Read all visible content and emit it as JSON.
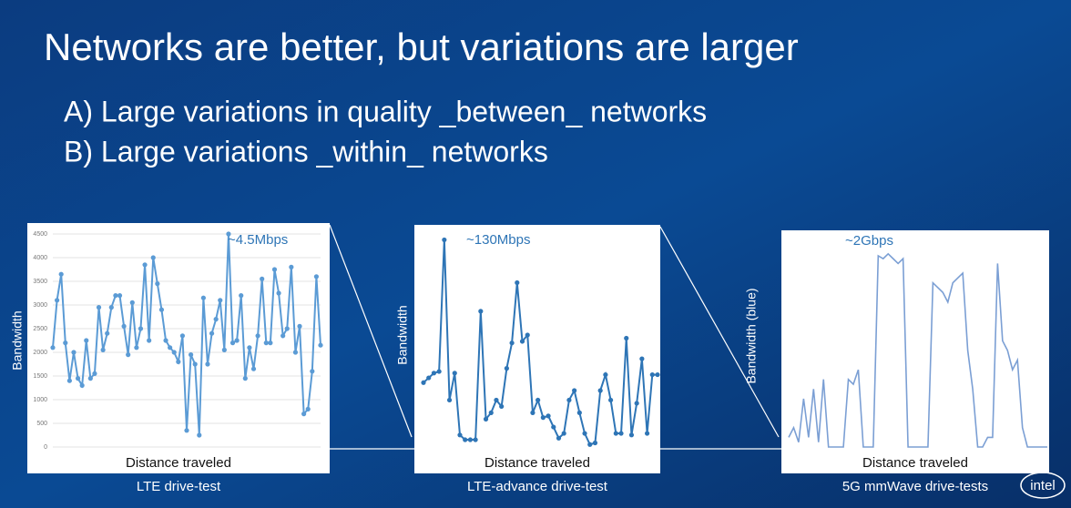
{
  "title": "Networks are better, but variations are larger",
  "points": [
    "A) Large variations in quality _between_ networks",
    "B) Large variations _within_ networks"
  ],
  "logo": "intel",
  "chart_data": [
    {
      "type": "line",
      "ylabel": "Bandwidth",
      "xlabel": "Distance traveled",
      "caption": "LTE drive-test",
      "annotation": "~4.5Mbps",
      "color": "#5b9bd5",
      "markers": true,
      "grid": true,
      "ylim": [
        0,
        4500
      ],
      "yticks": [
        0,
        500,
        1000,
        1500,
        2000,
        2500,
        3000,
        3500,
        4000,
        4500
      ],
      "values": [
        2100,
        3100,
        3650,
        2200,
        1400,
        2000,
        1450,
        1300,
        2250,
        1450,
        1550,
        2950,
        2050,
        2400,
        2950,
        3200,
        3200,
        2550,
        1950,
        3050,
        2100,
        2500,
        3850,
        2250,
        4000,
        3450,
        2900,
        2250,
        2100,
        2000,
        1800,
        2350,
        350,
        1950,
        1750,
        250,
        3150,
        1750,
        2400,
        2700,
        3100,
        2050,
        4500,
        2200,
        2250,
        3200,
        1450,
        2100,
        1650,
        2350,
        3550,
        2200,
        2200,
        3750,
        3250,
        2350,
        2500,
        3800,
        2000,
        2550,
        700,
        800,
        1600,
        3600,
        2150
      ]
    },
    {
      "type": "line",
      "ylabel": "Bandwidth",
      "xlabel": "Distance traveled",
      "caption": "LTE-advance drive-test",
      "annotation": "~130Mbps",
      "color": "#2e75b6",
      "markers": true,
      "grid": false,
      "ylim": [
        0,
        140
      ],
      "values": [
        40,
        43,
        46,
        47,
        130,
        29,
        46,
        7,
        4,
        4,
        4,
        85,
        17,
        21,
        29,
        25,
        49,
        65,
        103,
        66,
        70,
        21,
        29,
        18,
        19,
        12,
        5,
        8,
        29,
        35,
        21,
        8,
        1,
        2,
        35,
        45,
        29,
        8,
        8,
        68,
        7,
        27,
        55,
        8,
        45,
        45
      ]
    },
    {
      "type": "line",
      "ylabel": "Bandwidth (blue)",
      "xlabel": "Distance traveled",
      "caption": "5G mmWave drive-tests",
      "annotation": "~2Gbps",
      "color": "#7b9fd4",
      "markers": false,
      "grid": false,
      "ylim": [
        0,
        2.3
      ],
      "values": [
        0.1,
        0.2,
        0.05,
        0.5,
        0.1,
        0.6,
        0.05,
        0.7,
        0,
        0,
        0,
        0,
        0.7,
        0.65,
        0.8,
        0,
        0,
        0,
        1.98,
        1.95,
        2.0,
        1.95,
        1.9,
        1.95,
        0,
        0,
        0,
        0,
        0,
        1.7,
        1.65,
        1.6,
        1.5,
        1.7,
        1.75,
        1.8,
        1.0,
        0.6,
        0,
        0,
        0.1,
        0.1,
        1.9,
        1.1,
        1.0,
        0.8,
        0.9,
        0.2,
        0,
        0,
        0,
        0,
        0
      ]
    }
  ]
}
